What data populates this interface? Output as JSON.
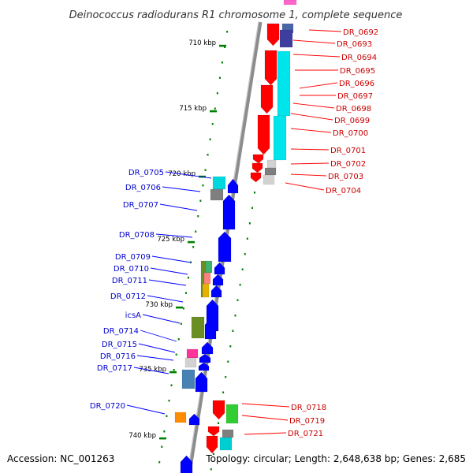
{
  "title": "Deinococcus radiodurans R1 chromosome 1, complete sequence",
  "accession": "Accession: NC_001263",
  "topology": "Topology: circular; Length: 2,648,638 bp; Genes: 2,685",
  "colors": {
    "forward": "#0000ff",
    "reverse": "#ff0000",
    "label_forward": "#0000cc",
    "label_reverse": "#cc0000",
    "axis": "#8c8c8c",
    "tick": "#008000"
  },
  "ruler": {
    "ticks": [
      {
        "label": "710 kbp"
      },
      {
        "label": "715 kbp"
      },
      {
        "label": "720 kbp"
      },
      {
        "label": "725 kbp"
      },
      {
        "label": "730 kbp"
      },
      {
        "label": "735 kbp"
      },
      {
        "label": "740 kbp"
      }
    ]
  },
  "genes_reverse": [
    {
      "name": "DR_0692"
    },
    {
      "name": "DR_0693"
    },
    {
      "name": "DR_0694"
    },
    {
      "name": "DR_0695"
    },
    {
      "name": "DR_0696"
    },
    {
      "name": "DR_0697"
    },
    {
      "name": "DR_0698"
    },
    {
      "name": "DR_0699"
    },
    {
      "name": "DR_0700"
    },
    {
      "name": "DR_0701"
    },
    {
      "name": "DR_0702"
    },
    {
      "name": "DR_0703"
    },
    {
      "name": "DR_0704"
    },
    {
      "name": "DR_0718"
    },
    {
      "name": "DR_0719"
    },
    {
      "name": "DR_0721"
    }
  ],
  "genes_forward": [
    {
      "name": "DR_0705"
    },
    {
      "name": "DR_0706"
    },
    {
      "name": "DR_0707"
    },
    {
      "name": "DR_0708"
    },
    {
      "name": "DR_0709"
    },
    {
      "name": "DR_0710"
    },
    {
      "name": "DR_0711"
    },
    {
      "name": "DR_0712"
    },
    {
      "name": "icsA"
    },
    {
      "name": "DR_0714"
    },
    {
      "name": "DR_0715"
    },
    {
      "name": "DR_0716"
    },
    {
      "name": "DR_0717"
    },
    {
      "name": "DR_0720"
    }
  ]
}
